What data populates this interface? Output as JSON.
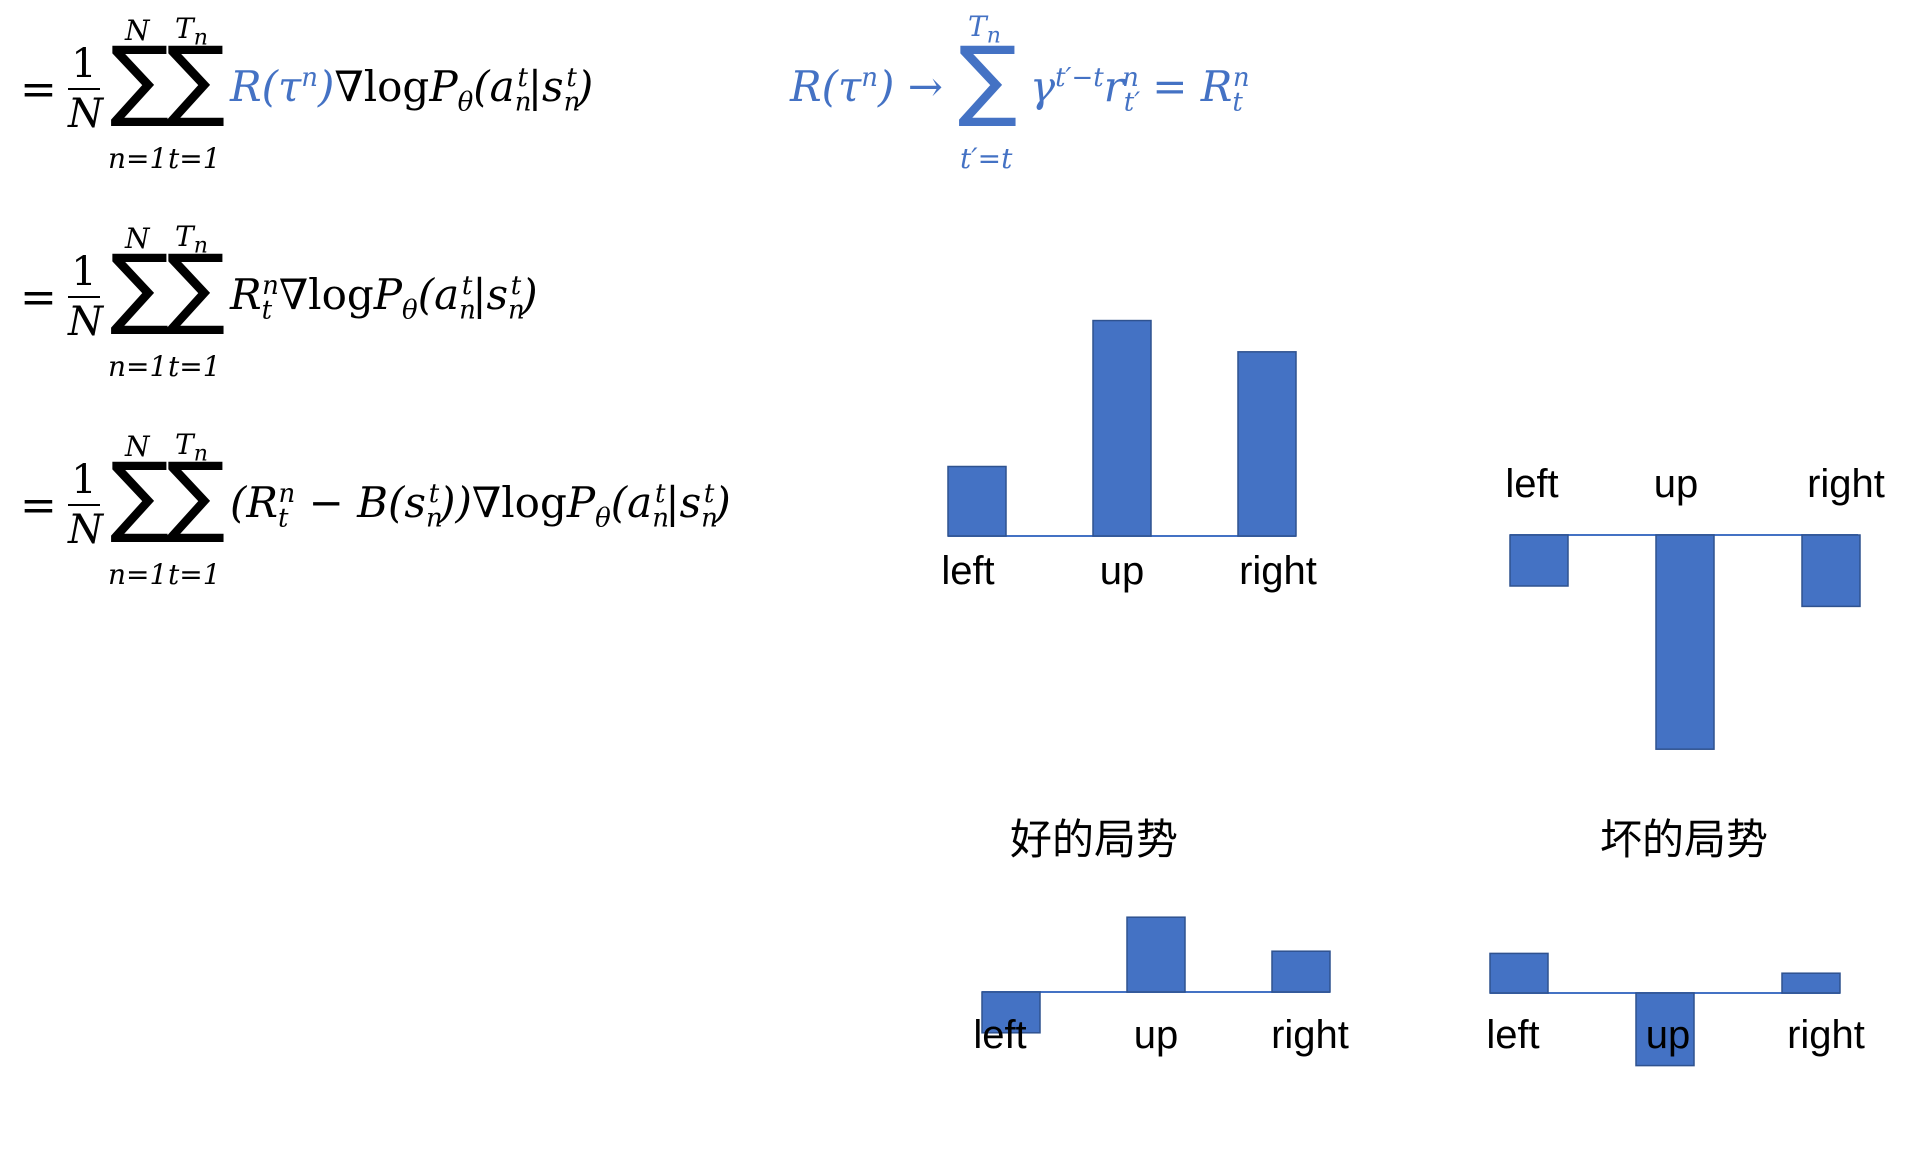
{
  "formulas": {
    "eq1_lead": "=",
    "eq2_lead": "=",
    "eq3_lead": "=",
    "frac_num": "1",
    "frac_den": "N",
    "sum_outer_upper": "N",
    "sum_outer_lower": "n=1",
    "sum_inner_upper": "T",
    "sum_inner_upper_sub": "n",
    "sum_inner_lower": "t=1",
    "grad_log": "∇log",
    "p_theta": "P",
    "theta": "θ",
    "return_def_upper": "T",
    "return_def_upper_sub": "n",
    "return_def_lower": "t′=t"
  },
  "captions": {
    "good": "好的局势",
    "bad": "坏的局势"
  },
  "chart_data": [
    {
      "type": "bar",
      "title": "",
      "categories": [
        "left",
        "up",
        "right"
      ],
      "values": [
        1.0,
        3.1,
        2.65
      ],
      "ylim": [
        -3.1,
        3.1
      ],
      "axis_labels_position": "below",
      "color": "#4472c4"
    },
    {
      "type": "bar",
      "title": "",
      "categories": [
        "left",
        "up",
        "right"
      ],
      "values": [
        -0.75,
        -3.15,
        -1.05
      ],
      "ylim": [
        -3.15,
        3.15
      ],
      "axis_labels_position": "above",
      "color": "#4472c4"
    },
    {
      "type": "bar",
      "title": "",
      "categories": [
        "left",
        "up",
        "right"
      ],
      "values": [
        -0.6,
        1.1,
        0.6
      ],
      "ylim": [
        -1.1,
        1.1
      ],
      "axis_labels_position": "below",
      "color": "#4472c4"
    },
    {
      "type": "bar",
      "title": "",
      "categories": [
        "left",
        "up",
        "right"
      ],
      "values": [
        0.6,
        -1.1,
        0.3
      ],
      "ylim": [
        -1.1,
        1.1
      ],
      "axis_labels_position": "below",
      "color": "#4472c4"
    }
  ]
}
